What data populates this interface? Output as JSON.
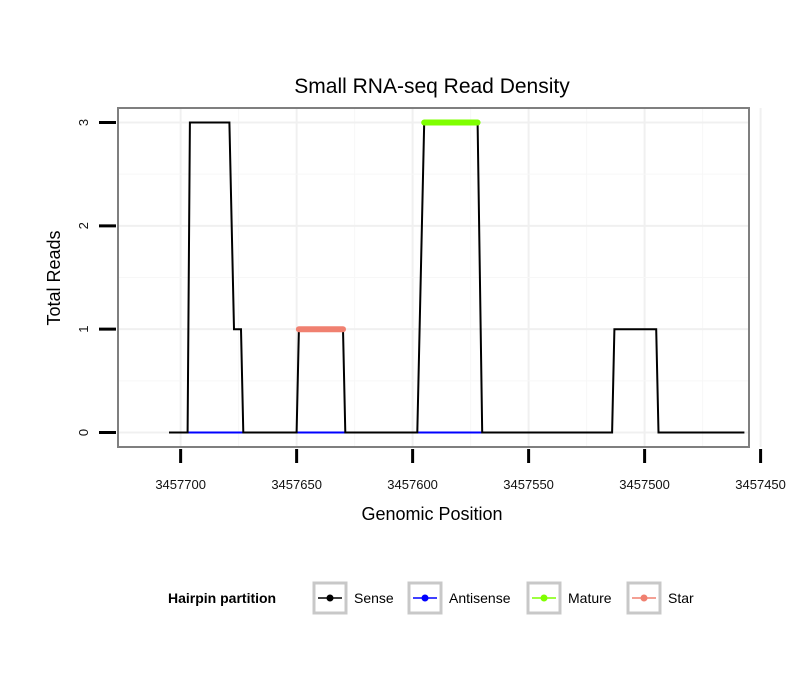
{
  "chart_data": {
    "type": "line",
    "title": "Small RNA-seq Read Density",
    "xlabel": "Genomic Position",
    "ylabel": "Total Reads",
    "x_reversed": true,
    "xlim": [
      3457455,
      3457727
    ],
    "ylim": [
      -0.14,
      3.14
    ],
    "x_ticks": [
      3457700,
      3457650,
      3457600,
      3457550,
      3457500,
      3457450
    ],
    "y_ticks": [
      0,
      1,
      2,
      3
    ],
    "grid": true,
    "series": [
      {
        "name": "Sense",
        "color": "#000000",
        "points": [
          [
            3457705,
            0
          ],
          [
            3457697,
            0
          ],
          [
            3457696,
            3
          ],
          [
            3457679,
            3
          ],
          [
            3457677,
            1
          ],
          [
            3457674,
            1
          ],
          [
            3457673,
            0
          ],
          [
            3457650,
            0
          ],
          [
            3457649,
            1
          ],
          [
            3457630,
            1
          ],
          [
            3457629,
            0
          ],
          [
            3457598,
            0
          ],
          [
            3457595,
            3
          ],
          [
            3457572,
            3
          ],
          [
            3457570,
            0
          ],
          [
            3457514,
            0
          ],
          [
            3457513,
            1
          ],
          [
            3457495,
            1
          ],
          [
            3457494,
            0
          ],
          [
            3457457,
            0
          ]
        ]
      },
      {
        "name": "Antisense",
        "color": "#0000ff",
        "points": [
          [
            3457697,
            0
          ],
          [
            3457570,
            0
          ]
        ]
      },
      {
        "name": "Mature",
        "color": "#7fff00",
        "points": [
          [
            3457595,
            3
          ],
          [
            3457572,
            3
          ]
        ]
      },
      {
        "name": "Star",
        "color": "#f08070",
        "points": [
          [
            3457649,
            1
          ],
          [
            3457630,
            1
          ]
        ]
      }
    ],
    "legend": {
      "title": "Hairpin partition",
      "position": "bottom",
      "entries": [
        "Sense",
        "Antisense",
        "Mature",
        "Star"
      ]
    }
  }
}
